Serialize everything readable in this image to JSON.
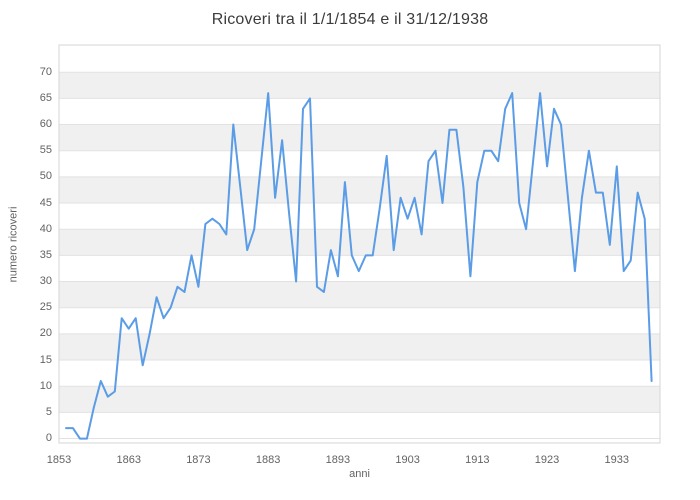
{
  "chart_data": {
    "type": "line",
    "title": "Ricoveri tra il 1/1/1854 e il 31/12/1938",
    "xlabel": "anni",
    "ylabel": "numero ricoveri",
    "start_year": 1854,
    "end_year": 1938,
    "values": [
      2,
      2,
      0,
      0,
      6,
      11,
      8,
      9,
      23,
      21,
      23,
      14,
      20,
      27,
      23,
      25,
      29,
      28,
      35,
      29,
      41,
      42,
      41,
      39,
      60,
      48,
      36,
      40,
      53,
      66,
      46,
      57,
      43,
      30,
      63,
      65,
      29,
      28,
      36,
      31,
      49,
      35,
      32,
      35,
      35,
      44,
      54,
      36,
      46,
      42,
      46,
      39,
      53,
      55,
      45,
      59,
      59,
      48,
      31,
      49,
      55,
      55,
      53,
      63,
      66,
      45,
      40,
      53,
      66,
      52,
      63,
      60,
      46,
      32,
      46,
      55,
      47,
      47,
      37,
      52,
      32,
      34,
      47,
      42,
      11
    ],
    "x_ticks": [
      1853,
      1863,
      1873,
      1883,
      1893,
      1903,
      1913,
      1923,
      1933
    ],
    "y_ticks": [
      0,
      5,
      10,
      15,
      20,
      25,
      30,
      35,
      40,
      45,
      50,
      55,
      60,
      65,
      70
    ],
    "x_range": [
      1853,
      1939.2
    ],
    "y_range": [
      -0.85,
      75.2
    ],
    "bands": [
      [
        5,
        10
      ],
      [
        15,
        20
      ],
      [
        25,
        30
      ],
      [
        35,
        40
      ],
      [
        45,
        50
      ],
      [
        55,
        60
      ],
      [
        65,
        70
      ]
    ],
    "line_color": "#5b9ce6",
    "band_color": "#f0f0f0",
    "grid_color": "#e2e2e2",
    "border_color": "#d6d6d6",
    "title_color": "#3c3c3c",
    "tick_color": "#636363",
    "legend": "none",
    "grid": "on"
  }
}
